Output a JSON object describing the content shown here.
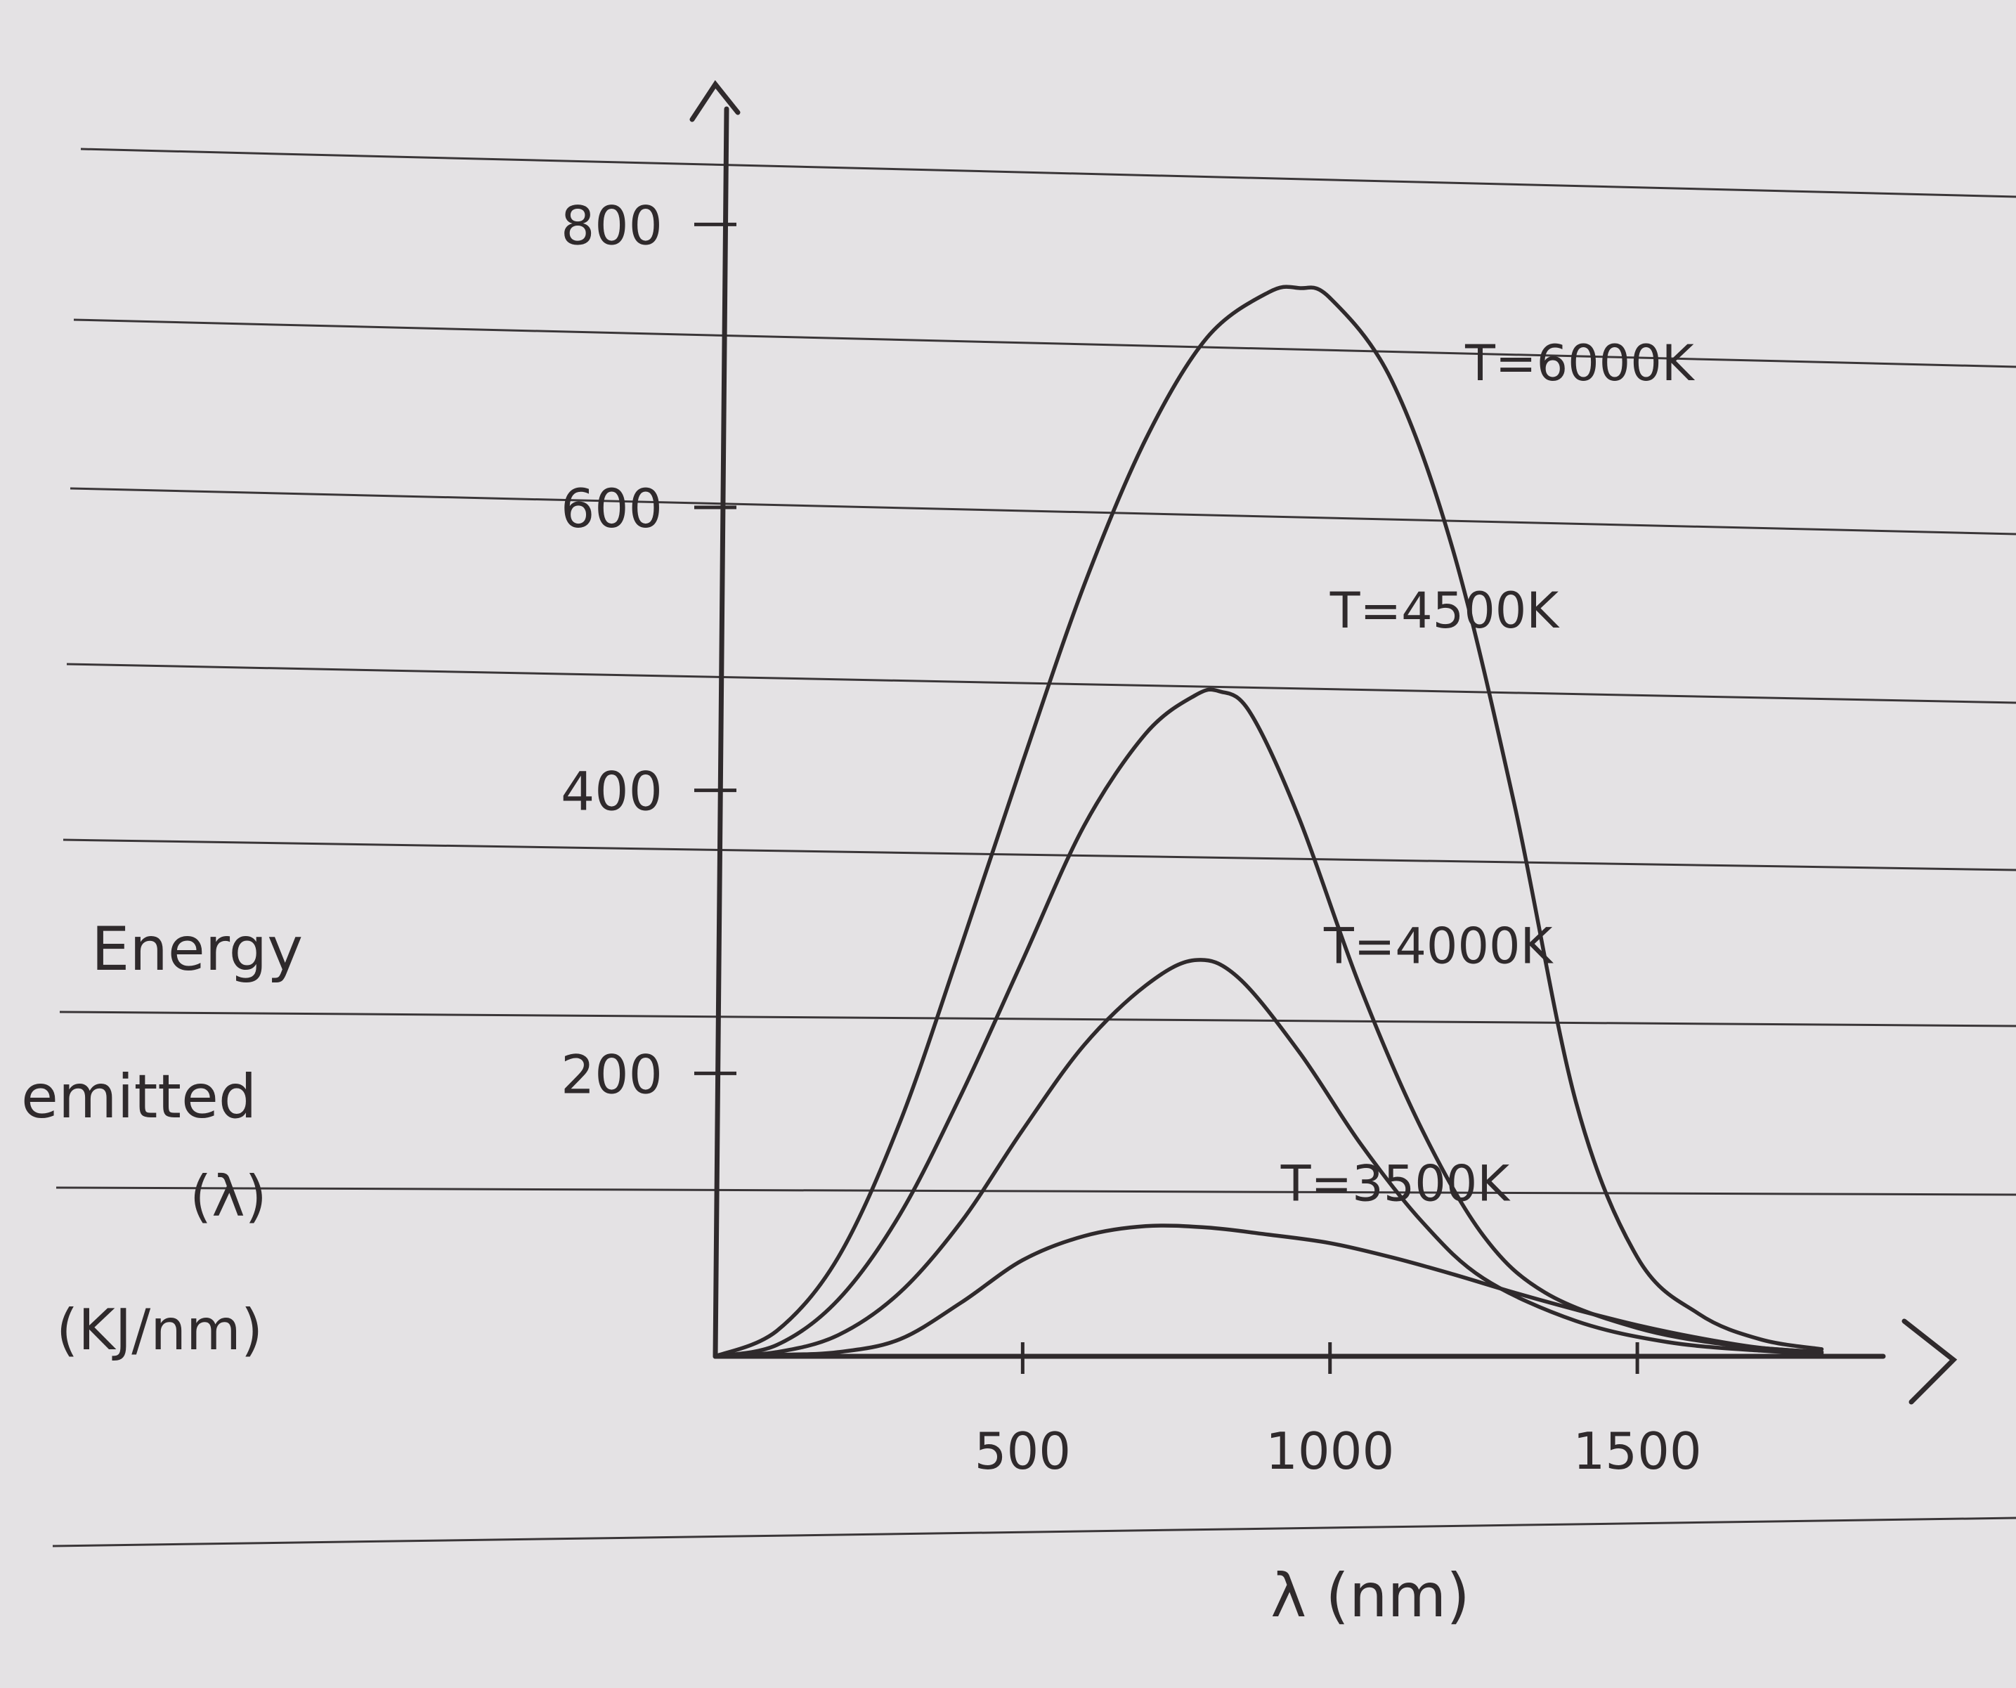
{
  "colors": {
    "paper": "#e4e2e4",
    "rule_line": "#3a3638",
    "ink": "#2f2a2c"
  },
  "chart_data": {
    "type": "line",
    "title": "",
    "xlabel": "λ (nm)",
    "ylabel_lines": [
      "Energy",
      "emitted",
      "(λ)",
      "(KJ/nm)"
    ],
    "xlim": [
      0,
      1900
    ],
    "ylim": [
      0,
      900
    ],
    "x_ticks": [
      500,
      1000,
      1500
    ],
    "x_tick_labels": [
      "500",
      "1000",
      "1500"
    ],
    "y_ticks": [
      200,
      400,
      600,
      800
    ],
    "y_tick_labels": [
      "200",
      "400",
      "600",
      "800"
    ],
    "grid": false,
    "series": [
      {
        "name": "T=6000K",
        "label_at": [
          1220,
          690
        ],
        "points": [
          [
            0,
            0
          ],
          [
            100,
            18
          ],
          [
            200,
            70
          ],
          [
            300,
            165
          ],
          [
            400,
            290
          ],
          [
            500,
            420
          ],
          [
            600,
            545
          ],
          [
            700,
            648
          ],
          [
            800,
            720
          ],
          [
            900,
            752
          ],
          [
            950,
            755
          ],
          [
            1000,
            748
          ],
          [
            1100,
            690
          ],
          [
            1200,
            570
          ],
          [
            1300,
            390
          ],
          [
            1400,
            180
          ],
          [
            1500,
            70
          ],
          [
            1600,
            30
          ],
          [
            1700,
            12
          ],
          [
            1800,
            5
          ]
        ]
      },
      {
        "name": "T=4500K",
        "label_at": [
          1000,
          515
        ],
        "points": [
          [
            0,
            0
          ],
          [
            100,
            8
          ],
          [
            200,
            40
          ],
          [
            300,
            100
          ],
          [
            400,
            185
          ],
          [
            500,
            280
          ],
          [
            600,
            375
          ],
          [
            700,
            440
          ],
          [
            780,
            467
          ],
          [
            820,
            470
          ],
          [
            870,
            455
          ],
          [
            950,
            380
          ],
          [
            1050,
            260
          ],
          [
            1150,
            160
          ],
          [
            1250,
            85
          ],
          [
            1350,
            45
          ],
          [
            1500,
            20
          ],
          [
            1650,
            8
          ],
          [
            1800,
            3
          ]
        ]
      },
      {
        "name": "T=4000K",
        "label_at": [
          990,
          278
        ],
        "points": [
          [
            0,
            0
          ],
          [
            100,
            3
          ],
          [
            200,
            15
          ],
          [
            300,
            45
          ],
          [
            400,
            95
          ],
          [
            500,
            160
          ],
          [
            600,
            220
          ],
          [
            700,
            262
          ],
          [
            780,
            280
          ],
          [
            850,
            268
          ],
          [
            950,
            215
          ],
          [
            1050,
            150
          ],
          [
            1150,
            95
          ],
          [
            1250,
            55
          ],
          [
            1400,
            25
          ],
          [
            1550,
            10
          ],
          [
            1700,
            4
          ],
          [
            1800,
            2
          ]
        ]
      },
      {
        "name": "T=3500K",
        "label_at": [
          920,
          110
        ],
        "points": [
          [
            0,
            0
          ],
          [
            100,
            1
          ],
          [
            200,
            3
          ],
          [
            300,
            12
          ],
          [
            400,
            38
          ],
          [
            500,
            68
          ],
          [
            600,
            85
          ],
          [
            700,
            92
          ],
          [
            800,
            91
          ],
          [
            900,
            86
          ],
          [
            1000,
            80
          ],
          [
            1100,
            70
          ],
          [
            1200,
            58
          ],
          [
            1300,
            45
          ],
          [
            1400,
            33
          ],
          [
            1500,
            22
          ],
          [
            1600,
            13
          ],
          [
            1700,
            6
          ],
          [
            1800,
            3
          ]
        ]
      }
    ]
  }
}
